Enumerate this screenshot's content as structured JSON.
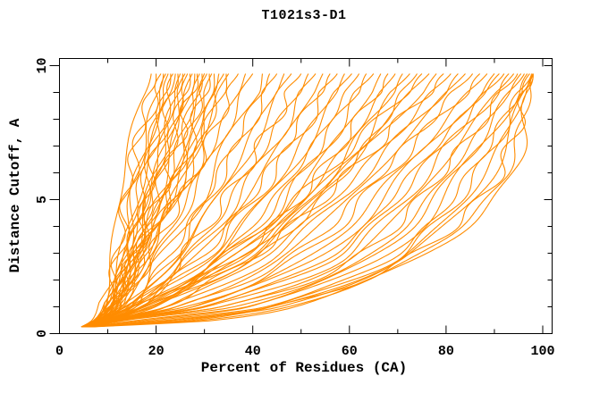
{
  "chart_data": {
    "type": "line",
    "title": "T1021s3-D1",
    "xlabel": "Percent of Residues (CA)",
    "ylabel": "Distance Cutoff, A",
    "xlim": [
      0,
      100
    ],
    "ylim": [
      0,
      10
    ],
    "x_major_ticks": [
      0,
      20,
      40,
      60,
      80,
      100
    ],
    "x_minor_ticks": [
      10,
      30,
      50,
      70,
      90
    ],
    "y_major_ticks": [
      0,
      5,
      10
    ],
    "y_minor_ticks": [
      1,
      2,
      3,
      4,
      6,
      7,
      8,
      9
    ],
    "grid": false,
    "legend": "none",
    "line_color": "#ff8c00",
    "axis_color": "#000000",
    "background": "#ffffff",
    "curve_top_cutoff": 9.7,
    "anchor_cutoffs": [
      0.25,
      0.5,
      1,
      3,
      6,
      9.7
    ],
    "series_note": "Each series is one model curve; values are estimated percent-of-residues at the anchor distance cutoffs above.",
    "series": [
      [
        4.5,
        7,
        9,
        11,
        13,
        19
      ],
      [
        5,
        8,
        10,
        12,
        14.5,
        20
      ],
      [
        4.8,
        7.5,
        9.5,
        12.5,
        15,
        21
      ],
      [
        5.2,
        8.5,
        11,
        13,
        16,
        21.5
      ],
      [
        4.6,
        7,
        9,
        13.5,
        16.5,
        22
      ],
      [
        5.5,
        9,
        11.5,
        14,
        17,
        22.5
      ],
      [
        4.9,
        7.8,
        10,
        14.5,
        18,
        23
      ],
      [
        5.1,
        8.2,
        10.5,
        15,
        18.5,
        23.5
      ],
      [
        4.7,
        7.4,
        9.8,
        13,
        17.5,
        24
      ],
      [
        5.3,
        8.8,
        11.2,
        15.5,
        19,
        24.5
      ],
      [
        4.5,
        7.2,
        9.2,
        14,
        19.5,
        25
      ],
      [
        5.6,
        9.2,
        12,
        16,
        20,
        25.5
      ],
      [
        4.8,
        7.6,
        10.2,
        14.8,
        20.5,
        26
      ],
      [
        5,
        8,
        10.8,
        15.2,
        21,
        26.5
      ],
      [
        5.4,
        8.6,
        11.5,
        16.5,
        21.5,
        27
      ],
      [
        4.6,
        7.3,
        9.6,
        13.8,
        19.8,
        27.5
      ],
      [
        5.2,
        8.4,
        11,
        16,
        22,
        28
      ],
      [
        4.9,
        7.9,
        10.4,
        15.6,
        22.5,
        28.5
      ],
      [
        5.5,
        9,
        12.2,
        17,
        23,
        29
      ],
      [
        4.7,
        7.5,
        10,
        15,
        23.5,
        29.5
      ],
      [
        5.1,
        8.3,
        11.3,
        16.8,
        24,
        30
      ],
      [
        5.7,
        9.4,
        12.5,
        17.5,
        24.5,
        30.5
      ],
      [
        4.8,
        7.7,
        10.6,
        16.2,
        25,
        31
      ],
      [
        5.3,
        8.7,
        11.8,
        17.2,
        25.5,
        31.5
      ],
      [
        5,
        8.1,
        11,
        16.5,
        26,
        32
      ],
      [
        5.6,
        9.1,
        12.8,
        18,
        26.5,
        33
      ],
      [
        4.6,
        7.4,
        9.9,
        15.8,
        27,
        34
      ],
      [
        5.2,
        8.5,
        11.6,
        17.8,
        27.5,
        34.5
      ],
      [
        5,
        8.5,
        12,
        18,
        26,
        35
      ],
      [
        5.4,
        9,
        13,
        19,
        28,
        37
      ],
      [
        4.8,
        8,
        11.5,
        20,
        29,
        38.5
      ],
      [
        5.6,
        9.5,
        14,
        21,
        30,
        40
      ],
      [
        5.1,
        8.8,
        12.5,
        22,
        32,
        42
      ],
      [
        4.9,
        8.2,
        13.5,
        23,
        33,
        43.5
      ],
      [
        5.7,
        10,
        15,
        24,
        34,
        45
      ],
      [
        5.2,
        9.2,
        14.5,
        25,
        35.5,
        46.5
      ],
      [
        4.7,
        8.4,
        13,
        24.5,
        36.5,
        48
      ],
      [
        5.5,
        9.8,
        15.5,
        26,
        38,
        50
      ],
      [
        5,
        8.6,
        14,
        27,
        39,
        51.5
      ],
      [
        5.8,
        10.5,
        16,
        28,
        40.5,
        53
      ],
      [
        5.3,
        9.4,
        15,
        29,
        42,
        54.5
      ],
      [
        4.8,
        8.3,
        14.2,
        30,
        43,
        56
      ],
      [
        5.6,
        10.2,
        16.5,
        31,
        44.5,
        57.5
      ],
      [
        5.1,
        9,
        15.2,
        32,
        46,
        59
      ],
      [
        5.9,
        11,
        17,
        33,
        47,
        60.5
      ],
      [
        5.4,
        9.6,
        16.2,
        34,
        48.5,
        62
      ],
      [
        4.9,
        8.7,
        15.4,
        35,
        50,
        63.5
      ],
      [
        5.7,
        10.8,
        17.5,
        36,
        51,
        65
      ],
      [
        5.2,
        9.3,
        16.8,
        37,
        52.5,
        66.5
      ],
      [
        6,
        11.5,
        18,
        38,
        54,
        68
      ],
      [
        5.5,
        10,
        17.2,
        39,
        55,
        69.5
      ],
      [
        5,
        9.1,
        16,
        40,
        56.5,
        71
      ],
      [
        5.8,
        11.2,
        18.5,
        41,
        58,
        72.5
      ],
      [
        5.3,
        9.7,
        17.8,
        42,
        59,
        74
      ],
      [
        5.5,
        10,
        18,
        35,
        55,
        75
      ],
      [
        5,
        9.5,
        19,
        37,
        57,
        76.5
      ],
      [
        5.9,
        11,
        20,
        39,
        58.5,
        78
      ],
      [
        5.4,
        10.5,
        21,
        41,
        60,
        79.5
      ],
      [
        6.1,
        12,
        22,
        43,
        62,
        81
      ],
      [
        5.6,
        11.5,
        23,
        45,
        63.5,
        82.5
      ],
      [
        5.1,
        10.8,
        24,
        47,
        65,
        84
      ],
      [
        6.2,
        12.5,
        25,
        49,
        66.5,
        85.5
      ],
      [
        5.7,
        11.8,
        26,
        51,
        68,
        87
      ],
      [
        5.2,
        11.2,
        27,
        53,
        70,
        88.5
      ],
      [
        6.3,
        13,
        28,
        55,
        71.5,
        90
      ],
      [
        5.8,
        12.2,
        29,
        57,
        73,
        91
      ],
      [
        5.3,
        11.6,
        30,
        58,
        74.5,
        92
      ],
      [
        6.4,
        13.5,
        31.5,
        60,
        76,
        93
      ],
      [
        5.9,
        12.8,
        33,
        62,
        77.5,
        94
      ],
      [
        5.4,
        12,
        34.5,
        63,
        79,
        94.8
      ],
      [
        6.5,
        14,
        36,
        65,
        80.5,
        95.5
      ],
      [
        6,
        16,
        38,
        66,
        82,
        96.2
      ],
      [
        5.5,
        18,
        40,
        68,
        83.5,
        96.8
      ],
      [
        6.6,
        20,
        42,
        70,
        85,
        97.3
      ],
      [
        6.1,
        22,
        44,
        71,
        86.5,
        97.7
      ],
      [
        5.6,
        24,
        46,
        72,
        88,
        98
      ],
      [
        6.7,
        26,
        43,
        73,
        89.5,
        98
      ],
      [
        6.2,
        28,
        45,
        74,
        91,
        98
      ],
      [
        5.7,
        30,
        47,
        75,
        92.5,
        98
      ],
      [
        6.8,
        32,
        48,
        76,
        94,
        98
      ]
    ]
  }
}
